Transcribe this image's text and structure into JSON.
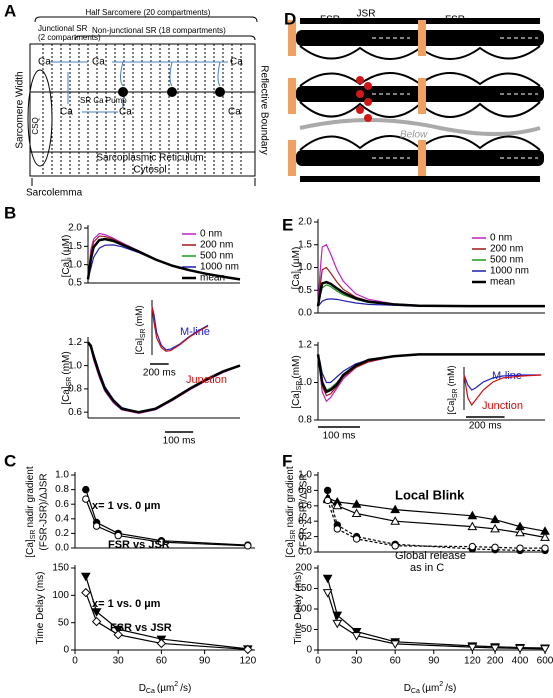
{
  "panel_labels": [
    "A",
    "B",
    "C",
    "D",
    "E",
    "F"
  ],
  "panel_a": {
    "title": "Half Sarcomere (20 compartments)",
    "junctional_sr": [
      "Junctional SR",
      "(2 compartments)"
    ],
    "non_junctional_sr": "Non-junctional SR (18 compartments)",
    "sarcomere_width": "Sarcomere Width",
    "reflective_boundary": "Reflective Boundary",
    "ca": [
      "Ca",
      "Ca",
      "Ca",
      "Ca",
      "Ca",
      "Ca"
    ],
    "csq": "CSQ",
    "pump": "SR Ca Pump",
    "sr": "Sarcoplasmic Reticulum",
    "cytosol": "Cytosol",
    "sarcolemma": "Sarcolemma"
  },
  "panel_d": {
    "labels": [
      "FSR",
      "JSR",
      "FSR"
    ],
    "below": "Below"
  },
  "chart_data": [
    {
      "type": "line",
      "ylabel": [
        {
          "text": "[Ca]"
        },
        {
          "text": "i",
          "shift": "sub"
        },
        {
          "text": "(µM)"
        }
      ],
      "x": [
        0,
        10,
        20,
        40,
        60,
        90,
        120,
        180,
        240,
        300,
        360,
        420,
        480,
        540
      ],
      "xlim": [
        0,
        540
      ],
      "ylim": [
        0.5,
        2.0
      ],
      "yticks": [
        0.5,
        {
          "value": 1,
          "label": "1.0"
        },
        1.5,
        {
          "value": 2,
          "label": "2.0"
        }
      ],
      "series": [
        {
          "name": "0 nm",
          "color": "#c020c0",
          "values": [
            0.6,
            1.4,
            1.7,
            1.85,
            1.82,
            1.72,
            1.6,
            1.38,
            1.15,
            0.98,
            0.85,
            0.75,
            0.67,
            0.6
          ]
        },
        {
          "name": "200 nm",
          "color": "#a01818",
          "values": [
            0.6,
            1.3,
            1.62,
            1.78,
            1.77,
            1.69,
            1.58,
            1.37,
            1.15,
            0.98,
            0.85,
            0.75,
            0.67,
            0.6
          ]
        },
        {
          "name": "500 nm",
          "color": "#1a9a1a",
          "values": [
            0.6,
            1.1,
            1.45,
            1.65,
            1.68,
            1.63,
            1.54,
            1.35,
            1.14,
            0.97,
            0.85,
            0.75,
            0.67,
            0.6
          ]
        },
        {
          "name": "1000 nm",
          "color": "#2020b0",
          "values": [
            0.6,
            0.9,
            1.2,
            1.45,
            1.53,
            1.54,
            1.49,
            1.33,
            1.13,
            0.97,
            0.84,
            0.75,
            0.67,
            0.6
          ]
        },
        {
          "name": "mean",
          "color": "#000000",
          "line_width": 2.5,
          "values": [
            0.6,
            1.15,
            1.48,
            1.67,
            1.7,
            1.65,
            1.55,
            1.36,
            1.14,
            0.97,
            0.85,
            0.75,
            0.67,
            0.6
          ]
        }
      ]
    },
    {
      "type": "line",
      "ylabel": [
        {
          "text": "[Ca]"
        },
        {
          "text": "SR",
          "shift": "sub"
        },
        {
          "text": "(mM)"
        }
      ],
      "x": [
        0,
        10,
        20,
        40,
        60,
        90,
        120,
        180,
        240,
        300,
        360,
        420,
        480,
        540
      ],
      "xlim": [
        0,
        540
      ],
      "ylim": [
        0.55,
        1.22
      ],
      "yticks": [
        0.6,
        0.8,
        {
          "value": 1,
          "label": "1.0"
        },
        1.2
      ],
      "scalebar": {
        "value": 100,
        "label": "100 ms"
      },
      "series": [
        {
          "color": "#c020c0",
          "values": [
            1.2,
            1.15,
            1.05,
            0.9,
            0.78,
            0.68,
            0.62,
            0.59,
            0.62,
            0.7,
            0.79,
            0.87,
            0.94,
            1.0
          ]
        },
        {
          "color": "#a01818",
          "values": [
            1.2,
            1.16,
            1.06,
            0.91,
            0.79,
            0.69,
            0.63,
            0.6,
            0.63,
            0.71,
            0.8,
            0.88,
            0.95,
            1.0
          ]
        },
        {
          "color": "#1a9a1a",
          "values": [
            1.2,
            1.17,
            1.08,
            0.93,
            0.8,
            0.7,
            0.63,
            0.6,
            0.63,
            0.71,
            0.8,
            0.88,
            0.95,
            1.0
          ]
        },
        {
          "color": "#2020b0",
          "values": [
            1.2,
            1.18,
            1.1,
            0.95,
            0.82,
            0.71,
            0.64,
            0.6,
            0.63,
            0.71,
            0.8,
            0.88,
            0.95,
            1.0
          ]
        },
        {
          "color": "#000000",
          "line_width": 2.5,
          "values": [
            1.2,
            1.17,
            1.08,
            0.93,
            0.8,
            0.7,
            0.63,
            0.6,
            0.63,
            0.71,
            0.8,
            0.88,
            0.95,
            1.0
          ]
        }
      ]
    },
    {
      "type": "line",
      "ylabel": [
        {
          "text": "[Ca]"
        },
        {
          "text": "SR",
          "shift": "sub"
        },
        {
          "text": "(mM)"
        }
      ],
      "x": [
        0,
        20,
        50,
        100,
        150,
        200,
        300,
        400,
        500,
        600
      ],
      "xlim": [
        0,
        600
      ],
      "ylim": [
        0.55,
        1.25
      ],
      "scalebar": {
        "value": 200,
        "label": "200 ms"
      },
      "series": [
        {
          "name": "M-line",
          "color": "#2020c0",
          "values": [
            1.2,
            1.1,
            0.85,
            0.68,
            0.62,
            0.63,
            0.7,
            0.8,
            0.88,
            0.95
          ]
        },
        {
          "name": "Junction",
          "color": "#d01010",
          "values": [
            1.2,
            1.0,
            0.78,
            0.65,
            0.6,
            0.61,
            0.69,
            0.79,
            0.87,
            0.94
          ]
        }
      ]
    },
    {
      "type": "line",
      "ylabel": [
        {
          "text": "[Ca]"
        },
        {
          "text": "i",
          "shift": "sub"
        },
        {
          "text": "(µM)"
        }
      ],
      "x": [
        0,
        5,
        10,
        20,
        30,
        45,
        60,
        90,
        120,
        180,
        240,
        360,
        540
      ],
      "xlim": [
        0,
        540
      ],
      "ylim": [
        0,
        2.0
      ],
      "yticks": [
        {
          "value": 0,
          "label": "0.0"
        },
        0.5,
        {
          "value": 1,
          "label": "1.0"
        },
        1.5,
        {
          "value": 2,
          "label": "2.0"
        }
      ],
      "series": [
        {
          "name": "0 nm",
          "color": "#c020c0",
          "values": [
            0.15,
            0.9,
            1.45,
            1.5,
            1.3,
            0.95,
            0.7,
            0.42,
            0.3,
            0.2,
            0.17,
            0.15,
            0.15
          ]
        },
        {
          "name": "200 nm",
          "color": "#a01818",
          "values": [
            0.15,
            0.6,
            0.95,
            1.0,
            0.88,
            0.68,
            0.52,
            0.35,
            0.26,
            0.19,
            0.16,
            0.15,
            0.15
          ]
        },
        {
          "name": "500 nm",
          "color": "#1a9a1a",
          "values": [
            0.15,
            0.35,
            0.55,
            0.62,
            0.58,
            0.48,
            0.4,
            0.3,
            0.23,
            0.18,
            0.16,
            0.15,
            0.15
          ]
        },
        {
          "name": "1000 nm",
          "color": "#2020b0",
          "values": [
            0.15,
            0.2,
            0.26,
            0.3,
            0.31,
            0.3,
            0.27,
            0.22,
            0.19,
            0.17,
            0.15,
            0.15,
            0.15
          ]
        },
        {
          "name": "mean",
          "color": "#000000",
          "line_width": 2.5,
          "values": [
            0.15,
            0.45,
            0.65,
            0.68,
            0.64,
            0.54,
            0.45,
            0.32,
            0.25,
            0.19,
            0.16,
            0.15,
            0.15
          ]
        }
      ]
    },
    {
      "type": "line",
      "ylabel": [
        {
          "text": "[Ca]"
        },
        {
          "text": "SR",
          "shift": "sub"
        },
        {
          "text": "(mM)"
        }
      ],
      "x": [
        0,
        5,
        10,
        20,
        30,
        45,
        60,
        90,
        120,
        180,
        240,
        360,
        540
      ],
      "xlim": [
        0,
        540
      ],
      "ylim": [
        0.8,
        1.2
      ],
      "yticks": [
        0.8,
        {
          "value": 1,
          "label": "1.0"
        },
        1.2
      ],
      "scalebar": {
        "value": 100,
        "label": "100 ms"
      },
      "series": [
        {
          "color": "#c020c0",
          "values": [
            1.15,
            1.05,
            0.95,
            0.9,
            0.92,
            0.97,
            1.02,
            1.08,
            1.11,
            1.14,
            1.15,
            1.15,
            1.15
          ]
        },
        {
          "color": "#a01818",
          "values": [
            1.15,
            1.07,
            0.98,
            0.93,
            0.94,
            0.98,
            1.03,
            1.08,
            1.11,
            1.14,
            1.15,
            1.15,
            1.15
          ]
        },
        {
          "color": "#1a9a1a",
          "values": [
            1.15,
            1.09,
            1.01,
            0.96,
            0.97,
            1.0,
            1.04,
            1.09,
            1.12,
            1.14,
            1.15,
            1.15,
            1.15
          ]
        },
        {
          "color": "#2020b0",
          "values": [
            1.15,
            1.11,
            1.05,
            1.0,
            1.0,
            1.03,
            1.06,
            1.1,
            1.12,
            1.14,
            1.15,
            1.15,
            1.15
          ]
        },
        {
          "color": "#000000",
          "line_width": 2.5,
          "values": [
            1.15,
            1.08,
            1.0,
            0.95,
            0.96,
            0.99,
            1.04,
            1.09,
            1.12,
            1.14,
            1.15,
            1.15,
            1.15
          ]
        }
      ]
    },
    {
      "type": "line",
      "ylabel": [
        {
          "text": "[Ca]"
        },
        {
          "text": "SR",
          "shift": "sub"
        },
        {
          "text": "(mM)"
        }
      ],
      "x": [
        0,
        20,
        40,
        60,
        100,
        150,
        200,
        300,
        400
      ],
      "xlim": [
        0,
        420
      ],
      "ylim": [
        0.8,
        1.2
      ],
      "scalebar": {
        "value": 200,
        "label": "200 ms"
      },
      "series": [
        {
          "name": "M-line",
          "color": "#2020c0",
          "values": [
            1.15,
            1.05,
            1.0,
            1.02,
            1.08,
            1.12,
            1.14,
            1.15,
            1.15
          ]
        },
        {
          "name": "Junction",
          "color": "#d01010",
          "values": [
            1.15,
            0.92,
            0.85,
            0.9,
            1.0,
            1.08,
            1.12,
            1.14,
            1.15
          ]
        }
      ]
    },
    {
      "type": "line",
      "ylabel": [
        {
          "text": "[Ca]"
        },
        {
          "text": "SR",
          "shift": "sub"
        },
        {
          "text": "nadir gradient"
        }
      ],
      "ylabel2": "(FSR-JSR)/ΔJSR",
      "x": [
        7.5,
        15,
        30,
        60,
        120
      ],
      "xlim": [
        0,
        125
      ],
      "ylim": [
        0,
        1.0
      ],
      "yticks": [
        {
          "value": 0,
          "label": "0.0"
        },
        0.2,
        0.4,
        0.6,
        0.8,
        {
          "value": 1,
          "label": "1.0"
        }
      ],
      "annotations": [
        "x= 1 vs. 0 µm",
        "FSR vs JSR"
      ],
      "series": [
        {
          "color": "#000000",
          "marker": "filled-circle",
          "values": [
            0.8,
            0.35,
            0.2,
            0.1,
            0.04
          ]
        },
        {
          "color": "#000000",
          "marker": "open-circle",
          "values": [
            0.67,
            0.3,
            0.17,
            0.08,
            0.03
          ]
        }
      ]
    },
    {
      "type": "line",
      "ylabel": [
        {
          "text": "Time Delay (ms)"
        }
      ],
      "xlabel": [
        {
          "text": "D"
        },
        {
          "text": "Ca",
          "shift": "sub"
        },
        {
          "text": "(µm"
        },
        {
          "text": "2",
          "shift": "super"
        },
        {
          "text": "/s)"
        }
      ],
      "x": [
        7.5,
        15,
        30,
        60,
        120
      ],
      "xlim": [
        0,
        125
      ],
      "xticks": [
        0,
        30,
        60,
        90,
        120
      ],
      "ylim": [
        0,
        150
      ],
      "yticks": [
        0,
        50,
        100,
        150
      ],
      "annotations": [
        "x= 1 vs. 0 µm",
        "FSR vs JSR"
      ],
      "series": [
        {
          "color": "#000000",
          "marker": "filled-triangle-down",
          "values": [
            135,
            70,
            38,
            20,
            2
          ]
        },
        {
          "color": "#000000",
          "marker": "open-diamond",
          "values": [
            105,
            52,
            28,
            12,
            1
          ]
        }
      ]
    },
    {
      "type": "line",
      "ylabel": [
        {
          "text": "[Ca]"
        },
        {
          "text": "SR",
          "shift": "sub"
        },
        {
          "text": "nadir gradient"
        }
      ],
      "ylabel2": "(FSR-JSR)/ΔJSR",
      "x": [
        7.5,
        15,
        30,
        60,
        120,
        200,
        400,
        600
      ],
      "xlim": [
        0,
        600
      ],
      "ylim": [
        0,
        1.0
      ],
      "yticks": [
        {
          "value": 0,
          "label": "0.0"
        },
        0.2,
        0.4,
        0.6,
        0.8,
        {
          "value": 1,
          "label": "1.0"
        }
      ],
      "annotations": [
        "Local Blink",
        "Global release",
        "as in C"
      ],
      "series": [
        {
          "color": "#000000",
          "marker": "filled-triangle",
          "values": [
            0.7,
            0.65,
            0.62,
            0.55,
            0.47,
            0.42,
            0.33,
            0.27
          ]
        },
        {
          "color": "#000000",
          "marker": "open-triangle",
          "values": [
            0.68,
            0.6,
            0.5,
            0.4,
            0.33,
            0.3,
            0.25,
            0.19
          ]
        },
        {
          "color": "#000000",
          "marker": "filled-circle",
          "dashed": true,
          "values": [
            0.8,
            0.35,
            0.2,
            0.1,
            0.04,
            0.03,
            0.02,
            0.02
          ]
        },
        {
          "color": "#000000",
          "marker": "open-circle",
          "dashed": true,
          "values": [
            0.67,
            0.3,
            0.17,
            0.08,
            0.07,
            0.06,
            0.05,
            0.05
          ]
        }
      ]
    },
    {
      "type": "line",
      "ylabel": [
        {
          "text": "Time Delay (ms)"
        }
      ],
      "xlabel": [
        {
          "text": "D"
        },
        {
          "text": "Ca",
          "shift": "sub"
        },
        {
          "text": "(µm"
        },
        {
          "text": "2",
          "shift": "super"
        },
        {
          "text": "/s)"
        }
      ],
      "x": [
        7.5,
        15,
        30,
        60,
        120,
        200,
        400,
        600
      ],
      "xlim": [
        0,
        600
      ],
      "xticks": [
        0,
        30,
        60,
        90,
        120,
        200,
        400,
        600
      ],
      "ylim": [
        0,
        200
      ],
      "yticks": [
        0,
        50,
        100,
        150,
        200
      ],
      "series": [
        {
          "color": "#000000",
          "marker": "filled-triangle-down",
          "values": [
            175,
            85,
            45,
            20,
            10,
            8,
            6,
            5
          ]
        },
        {
          "color": "#000000",
          "marker": "open-triangle-down",
          "values": [
            140,
            65,
            35,
            15,
            7,
            5,
            4,
            3
          ]
        }
      ]
    }
  ]
}
